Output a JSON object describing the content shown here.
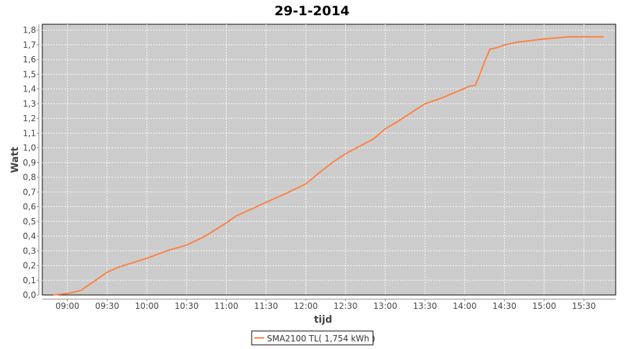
{
  "chart_data": {
    "type": "line",
    "title": "29-1-2014",
    "xlabel": "tijd",
    "ylabel": "Watt",
    "xlim": [
      "08:41",
      "15:54"
    ],
    "ylim": [
      0,
      1.84
    ],
    "x_ticks": [
      "09:00",
      "09:30",
      "10:00",
      "10:30",
      "11:00",
      "11:30",
      "12:00",
      "12:30",
      "13:00",
      "13:30",
      "14:00",
      "14:30",
      "15:00",
      "15:30"
    ],
    "y_ticks": [
      "0,0",
      "0,1",
      "0,2",
      "0,3",
      "0,4",
      "0,5",
      "0,6",
      "0,7",
      "0,8",
      "0,9",
      "1,0",
      "1,1",
      "1,2",
      "1,3",
      "1,4",
      "1,5",
      "1,6",
      "1,7",
      "1,8"
    ],
    "grid": true,
    "legend_position": "bottom",
    "colors": {
      "series": "#ff7f3f",
      "plot_background": "#cccccc",
      "grid": "#ffffff"
    },
    "series": [
      {
        "name": "SMA2100 TL( 1,754 kWh )",
        "x": [
          "08:49",
          "09:00",
          "09:10",
          "09:18",
          "09:30",
          "09:39",
          "10:00",
          "10:15",
          "10:30",
          "10:44",
          "11:00",
          "11:07",
          "11:30",
          "11:45",
          "12:00",
          "12:10",
          "12:20",
          "12:30",
          "12:51",
          "13:00",
          "13:07",
          "13:30",
          "13:43",
          "14:00",
          "14:04",
          "14:08",
          "14:11",
          "14:15",
          "14:19",
          "14:24",
          "14:30",
          "14:41",
          "15:00",
          "15:19",
          "15:45"
        ],
        "values": [
          0.0,
          0.01,
          0.03,
          0.08,
          0.155,
          0.19,
          0.25,
          0.3,
          0.34,
          0.4,
          0.49,
          0.535,
          0.63,
          0.69,
          0.755,
          0.83,
          0.9,
          0.96,
          1.06,
          1.13,
          1.165,
          1.3,
          1.34,
          1.405,
          1.42,
          1.425,
          1.49,
          1.585,
          1.67,
          1.68,
          1.7,
          1.72,
          1.74,
          1.755,
          1.754
        ]
      }
    ]
  }
}
